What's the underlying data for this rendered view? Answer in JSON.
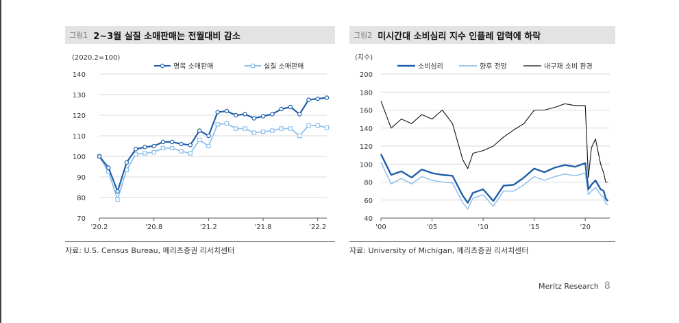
{
  "figures": [
    {
      "tag": "그림1",
      "title": "2~3월 실질 소매판매는 전월대비 감소",
      "source": "자료: U.S. Census Bureau, 메리츠증권 리서치센터"
    },
    {
      "tag": "그림2",
      "title": "미시간대 소비심리 지수 인플레 압력에 하락",
      "source": "자료: University of Michigan, 메리츠증권 리서치센터"
    }
  ],
  "footer": {
    "brand": "Meritz Research",
    "page": "8"
  },
  "chart_data": [
    {
      "type": "line",
      "unit_label": "(2020.2=100)",
      "x": [
        "20.02",
        "20.03",
        "20.04",
        "20.05",
        "20.06",
        "20.07",
        "20.08",
        "20.09",
        "20.10",
        "20.11",
        "20.12",
        "21.01",
        "21.02",
        "21.03",
        "21.04",
        "21.05",
        "21.06",
        "21.07",
        "21.08",
        "21.09",
        "21.10",
        "21.11",
        "21.12",
        "22.01",
        "22.02",
        "22.03"
      ],
      "x_tick_labels": [
        "'20.2",
        "'20.8",
        "'21.2",
        "'21.8",
        "'22.2"
      ],
      "x_tick_indices": [
        0,
        6,
        12,
        18,
        24
      ],
      "ylim": [
        70,
        140
      ],
      "y_ticks": [
        70,
        80,
        90,
        100,
        110,
        120,
        130,
        140
      ],
      "legend_position": "top",
      "series": [
        {
          "name": "명목 소매판매",
          "color": "#1f5fa8",
          "marker": "circle",
          "values": [
            100,
            94.5,
            83,
            97,
            103.5,
            104.5,
            105,
            107,
            107,
            106,
            105.5,
            112.5,
            110,
            121.5,
            122,
            120,
            120.5,
            118.5,
            119.5,
            120.5,
            123,
            124,
            120.5,
            127.5,
            128,
            128.5
          ]
        },
        {
          "name": "실질 소매판매",
          "color": "#8fc0ea",
          "marker": "square",
          "values": [
            100,
            92.5,
            79,
            93.5,
            101,
            101.5,
            102,
            104,
            104,
            102.5,
            101.5,
            108,
            105,
            115.5,
            116,
            113.5,
            113.5,
            111.5,
            112,
            112.5,
            113.5,
            113.5,
            110,
            115,
            115,
            114
          ]
        }
      ]
    },
    {
      "type": "line",
      "unit_label": "(지수)",
      "x_range": [
        2000,
        2022.4
      ],
      "x_tick_labels": [
        "'00",
        "'05",
        "'10",
        "'15",
        "'20"
      ],
      "x_tick_values": [
        2000,
        2005,
        2010,
        2015,
        2020
      ],
      "ylim": [
        40,
        200
      ],
      "y_ticks": [
        40,
        60,
        80,
        100,
        120,
        140,
        160,
        180,
        200
      ],
      "legend_position": "top",
      "series": [
        {
          "name": "소비심리",
          "color": "#1f5fa8",
          "x": [
            2000,
            2001,
            2002,
            2003,
            2004,
            2005,
            2006,
            2007,
            2008,
            2008.5,
            2009,
            2010,
            2011,
            2012,
            2013,
            2014,
            2015,
            2016,
            2017,
            2018,
            2019,
            2020,
            2020.3,
            2020.6,
            2021,
            2021.5,
            2021.8,
            2022,
            2022.2
          ],
          "values": [
            111,
            88,
            92,
            85,
            94,
            90,
            88,
            87,
            65,
            57,
            68,
            72,
            59,
            76,
            77,
            85,
            95,
            91,
            96,
            99,
            97,
            101,
            72,
            77,
            82,
            72,
            70,
            62,
            59
          ]
        },
        {
          "name": "향후 전망",
          "color": "#8fc0ea",
          "x": [
            2000,
            2001,
            2002,
            2003,
            2004,
            2005,
            2006,
            2007,
            2008,
            2008.5,
            2009,
            2010,
            2011,
            2012,
            2013,
            2014,
            2015,
            2016,
            2017,
            2018,
            2019,
            2020,
            2020.3,
            2020.6,
            2021,
            2021.5,
            2021.8,
            2022,
            2022.2
          ],
          "values": [
            102,
            78,
            84,
            78,
            86,
            82,
            80,
            79,
            57,
            50,
            62,
            66,
            53,
            70,
            70,
            77,
            86,
            82,
            86,
            89,
            87,
            90,
            66,
            70,
            74,
            66,
            63,
            56,
            55
          ]
        },
        {
          "name": "내구재 소비 환경",
          "color": "#111111",
          "x": [
            2000,
            2001,
            2002,
            2003,
            2004,
            2005,
            2006,
            2007,
            2008,
            2008.5,
            2009,
            2010,
            2011,
            2012,
            2013,
            2014,
            2015,
            2016,
            2017,
            2018,
            2019,
            2020,
            2020.3,
            2020.6,
            2021,
            2021.5,
            2021.8,
            2022,
            2022.2
          ],
          "values": [
            170,
            140,
            150,
            145,
            155,
            150,
            160,
            145,
            105,
            95,
            112,
            115,
            120,
            130,
            138,
            145,
            160,
            160,
            163,
            167,
            165,
            165,
            85,
            118,
            128,
            100,
            90,
            80,
            80
          ]
        }
      ]
    }
  ]
}
